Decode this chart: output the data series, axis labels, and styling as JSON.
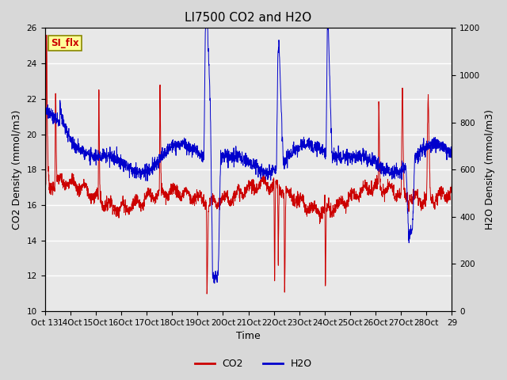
{
  "title": "LI7500 CO2 and H2O",
  "xlabel": "Time",
  "ylabel_left": "CO2 Density (mmol/m3)",
  "ylabel_right": "H2O Density (mmol/m3)",
  "ylim_left": [
    10,
    26
  ],
  "ylim_right": [
    0,
    1200
  ],
  "yticks_left": [
    10,
    12,
    14,
    16,
    18,
    20,
    22,
    24,
    26
  ],
  "yticks_right": [
    0,
    200,
    400,
    600,
    800,
    1000,
    1200
  ],
  "xtick_display": [
    "Oct 13",
    "14Oct",
    "15Oct",
    "16Oct",
    "17Oct",
    "18Oct",
    "19Oct",
    "20Oct",
    "21Oct",
    "22Oct",
    "23Oct",
    "24Oct",
    "25Oct",
    "26Oct",
    "27Oct",
    "28Oct",
    "29"
  ],
  "co2_color": "#cc0000",
  "h2o_color": "#0000cc",
  "fig_bg_color": "#d8d8d8",
  "plot_bg_color": "#e8e8e8",
  "grid_color": "white",
  "annotation_text": "SI_flx",
  "annotation_bg": "#ffff99",
  "annotation_border": "#888800",
  "title_fontsize": 11,
  "axis_label_fontsize": 9,
  "tick_fontsize": 7.5,
  "legend_fontsize": 9
}
